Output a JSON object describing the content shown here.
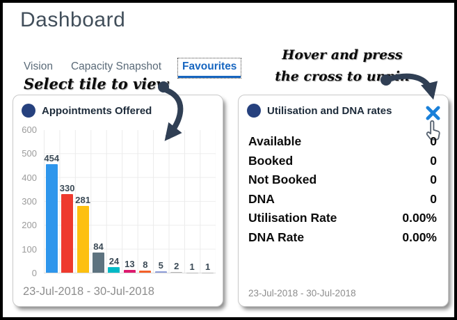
{
  "page": {
    "title": "Dashboard"
  },
  "tabs": [
    {
      "label": "Vision",
      "active": false
    },
    {
      "label": "Capacity Snapshot",
      "active": false
    },
    {
      "label": "Favourites",
      "active": true
    }
  ],
  "annotations": {
    "select_tile": "Select tile to view",
    "unpin_line1": "Hover and press",
    "unpin_line2": "the cross to unpin"
  },
  "tiles": {
    "appointments": {
      "title": "Appointments Offered",
      "date_range": "23-Jul-2018 - 30-Jul-2018"
    },
    "utilisation": {
      "title": "Utilisation and DNA rates",
      "date_range": "23-Jul-2018 - 30-Jul-2018",
      "stats": [
        {
          "label": "Available",
          "value": "0"
        },
        {
          "label": "Booked",
          "value": "0"
        },
        {
          "label": "Not Booked",
          "value": "0"
        },
        {
          "label": "DNA",
          "value": "0"
        },
        {
          "label": "Utilisation Rate",
          "value": "0.00%"
        },
        {
          "label": "DNA Rate",
          "value": "0.00%"
        }
      ]
    }
  },
  "icons": {
    "tile_bullet": "filled-navy-circle",
    "close": "blue-cross",
    "cursor": "hand-pointer",
    "arrows": "curved-navy-arrows"
  },
  "colors": {
    "accent_blue": "#1766c0",
    "cross_blue": "#1a80d9",
    "bullet_navy": "#26417e",
    "arrow_navy": "#303f54",
    "tab_gray": "#5a6a78",
    "date_gray": "#8d8d8d"
  },
  "chart_data": {
    "type": "bar",
    "title": "Appointments Offered",
    "values": [
      454,
      330,
      281,
      84,
      24,
      13,
      8,
      5,
      2,
      1,
      1
    ],
    "bar_colors": [
      "#2e96ec",
      "#ee3a2e",
      "#fdc010",
      "#5d7380",
      "#00b9c6",
      "#dd1a6e",
      "#f4612a",
      "#8d9cd8",
      "#b5b5b5",
      "#b5b5b5",
      "#b5b5b5"
    ],
    "data_labels": true,
    "yticks": [
      0,
      100,
      200,
      300,
      400,
      500,
      600
    ],
    "ylim": [
      0,
      600
    ],
    "xlabel": "23-Jul-2018 - 30-Jul-2018",
    "ylabel": "",
    "grid": true,
    "legend": "none"
  }
}
